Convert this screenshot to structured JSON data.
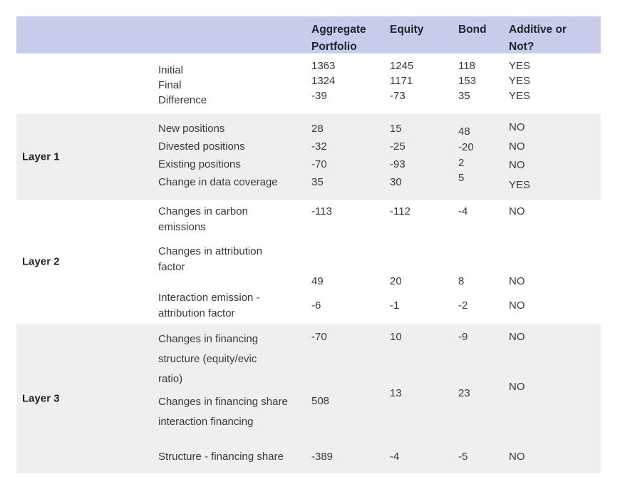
{
  "colors": {
    "header_bg": "#c6cce9",
    "band_bg": "#efefef",
    "header_text": "#20242f",
    "body_text": "#36383d"
  },
  "table": {
    "header": {
      "aggregate": "Aggregate Portfolio",
      "equity": "Equity",
      "bond": "Bond",
      "additive": "Additive or Not?"
    },
    "sections": [
      {
        "layer_label": "",
        "rows": [
          {
            "label": "Initial",
            "aggregate": "1363",
            "equity": "1245",
            "bond": "118",
            "additive": "YES"
          },
          {
            "label": "Final",
            "aggregate": "1324",
            "equity": "1171",
            "bond": "153",
            "additive": "YES"
          },
          {
            "label": "Difference",
            "aggregate": "-39",
            "equity": "-73",
            "bond": "35",
            "additive": "YES"
          }
        ]
      },
      {
        "layer_label": "Layer 1",
        "rows": [
          {
            "label": "New positions",
            "aggregate": "28",
            "equity": "15",
            "bond": "48",
            "additive": "NO"
          },
          {
            "label": "Divested positions",
            "aggregate": "-32",
            "equity": "-25",
            "bond": "-20",
            "additive": "NO"
          },
          {
            "label": "Existing positions",
            "aggregate": "-70",
            "equity": "-93",
            "bond": "2",
            "additive": "NO"
          },
          {
            "label": "Change in data coverage",
            "aggregate": "35",
            "equity": "30",
            "bond": "5",
            "additive": "YES"
          }
        ]
      },
      {
        "layer_label": "Layer 2",
        "rows": [
          {
            "label": "Changes in carbon emissions",
            "aggregate": "-113",
            "equity": "-112",
            "bond": "-4",
            "additive": "NO"
          },
          {
            "label": "Changes in attribution factor",
            "aggregate": "49",
            "equity": "20",
            "bond": "8",
            "additive": "NO"
          },
          {
            "label": "Interaction emission - attribution factor",
            "aggregate": "-6",
            "equity": "-1",
            "bond": "-2",
            "additive": "NO"
          }
        ]
      },
      {
        "layer_label": "Layer 3",
        "rows": [
          {
            "label": "Changes in financing structure (equity/evic ratio)",
            "aggregate": "-70",
            "equity": "10",
            "bond": "-9",
            "additive": "NO"
          },
          {
            "label": "Changes in financing share interaction financing",
            "aggregate": "508",
            "equity": "13",
            "bond": "23",
            "additive": "NO"
          },
          {
            "label": "Structure - financing share",
            "aggregate": "-389",
            "equity": "-4",
            "bond": "-5",
            "additive": "NO"
          }
        ]
      }
    ]
  }
}
